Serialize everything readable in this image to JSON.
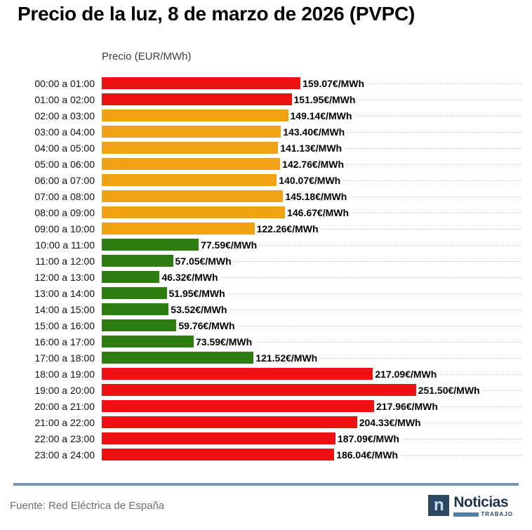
{
  "title": "Precio de la luz, 8 de marzo de 2026 (PVPC)",
  "axis_label": "Precio (EUR/MWh)",
  "colors": {
    "red": "#ee1111",
    "orange": "#f0a214",
    "green": "#2e7d10",
    "divider": "#7796ab",
    "gridline": "#c9c9c9"
  },
  "chart_data": {
    "type": "bar",
    "orientation": "horizontal",
    "title": "Precio de la luz, 8 de marzo de 2026 (PVPC)",
    "xlabel": "Precio (EUR/MWh)",
    "xlim": [
      0,
      255
    ],
    "grid": "dotted horizontal per category",
    "legend": "none",
    "categories": [
      "00:00 a 01:00",
      "01:00 a 02:00",
      "02:00 a 03:00",
      "03:00 a 04:00",
      "04:00 a 05:00",
      "05:00 a 06:00",
      "06:00 a 07:00",
      "07:00 a 08:00",
      "08:00 a 09:00",
      "09:00 a 10:00",
      "10:00 a 11:00",
      "11:00 a 12:00",
      "12:00 a 13:00",
      "13:00 a 14:00",
      "14:00 a 15:00",
      "15:00 a 16:00",
      "16:00 a 17:00",
      "17:00 a 18:00",
      "18:00 a 19:00",
      "19:00 a 20:00",
      "20:00 a 21:00",
      "21:00 a 22:00",
      "22:00 a 23:00",
      "23:00 a 24:00"
    ],
    "values": [
      159.07,
      151.95,
      149.14,
      143.4,
      141.13,
      142.76,
      140.07,
      145.18,
      146.67,
      122.26,
      77.59,
      57.05,
      46.32,
      51.95,
      53.52,
      59.76,
      73.59,
      121.52,
      217.09,
      251.5,
      217.96,
      204.33,
      187.09,
      186.04
    ],
    "labels": [
      "159.07€/MWh",
      "151.95€/MWh",
      "149.14€/MWh",
      "143.40€/MWh",
      "141.13€/MWh",
      "142.76€/MWh",
      "140.07€/MWh",
      "145.18€/MWh",
      "146.67€/MWh",
      "122.26€/MWh",
      "77.59€/MWh",
      "57.05€/MWh",
      "46.32€/MWh",
      "51.95€/MWh",
      "53.52€/MWh",
      "59.76€/MWh",
      "73.59€/MWh",
      "121.52€/MWh",
      "217.09€/MWh",
      "251.50€/MWh",
      "217.96€/MWh",
      "204.33€/MWh",
      "187.09€/MWh",
      "186.04€/MWh"
    ],
    "bar_colors": [
      "red",
      "red",
      "orange",
      "orange",
      "orange",
      "orange",
      "orange",
      "orange",
      "orange",
      "orange",
      "green",
      "green",
      "green",
      "green",
      "green",
      "green",
      "green",
      "green",
      "red",
      "red",
      "red",
      "red",
      "red",
      "red"
    ]
  },
  "footer": {
    "source": "Fuente: Red Eléctrica de España",
    "logo": {
      "icon_letter": "n",
      "name": "Noticias",
      "tagline": "TRABAJO"
    }
  }
}
